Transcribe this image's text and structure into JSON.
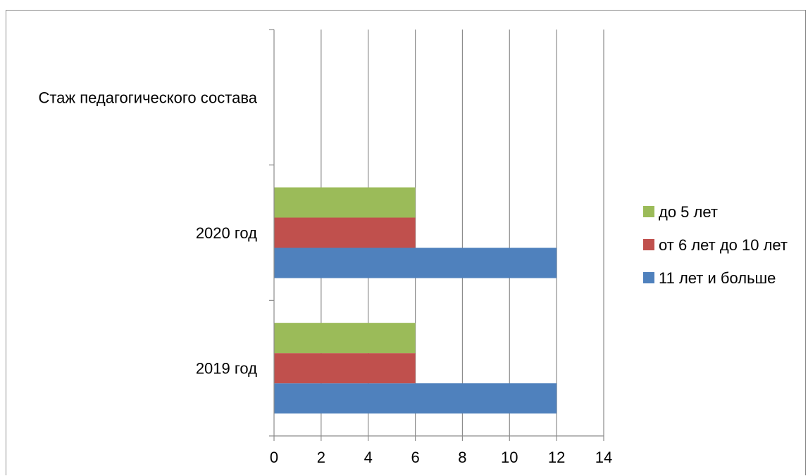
{
  "chart_data": {
    "type": "bar",
    "orientation": "horizontal",
    "categories": [
      "2019 год",
      "2020 год",
      "Стаж педагогического состава"
    ],
    "series": [
      {
        "name": "11 лет и больше",
        "color": "#4f81bd",
        "values": [
          12,
          12,
          null
        ]
      },
      {
        "name": "от 6 лет до 10 лет",
        "color": "#c0504d",
        "values": [
          6,
          6,
          null
        ]
      },
      {
        "name": "до 5 лет",
        "color": "#9bbb59",
        "values": [
          6,
          6,
          null
        ]
      }
    ],
    "xlim": [
      0,
      14
    ],
    "xticks": [
      "0",
      "2",
      "4",
      "6",
      "8",
      "10",
      "12",
      "14"
    ],
    "grid": true,
    "legend": "right"
  }
}
